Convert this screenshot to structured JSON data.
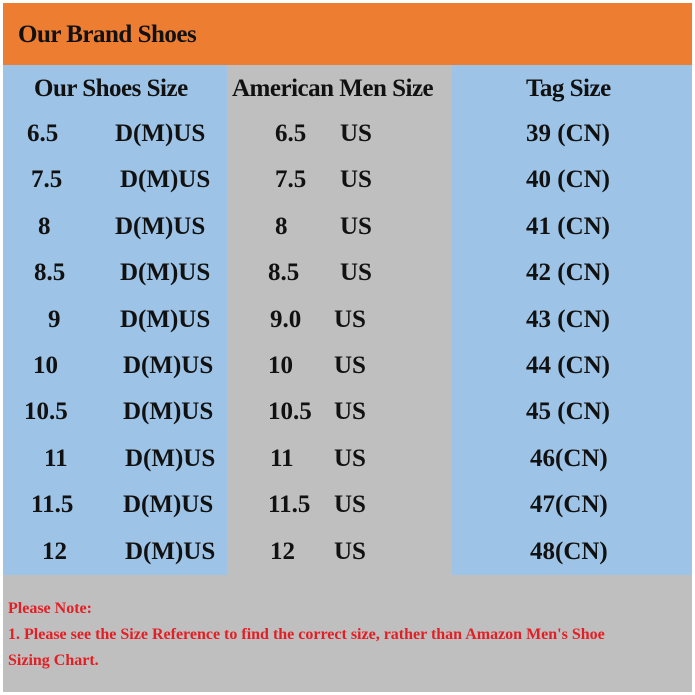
{
  "title": "Our Brand Shoes",
  "headers": [
    "Our Shoes Size",
    "American Men Size",
    "Tag Size"
  ],
  "rows": [
    {
      "our": "6.5",
      "our_unit": "D(M)US",
      "us": "6.5",
      "us_unit": "US",
      "tag": "39 (CN)"
    },
    {
      "our": "7.5",
      "our_unit": "D(M)US",
      "us": "7.5",
      "us_unit": "US",
      "tag": "40 (CN)"
    },
    {
      "our": "8",
      "our_unit": "D(M)US",
      "us": "8",
      "us_unit": "US",
      "tag": "41 (CN)"
    },
    {
      "our": "8.5",
      "our_unit": "D(M)US",
      "us": "8.5",
      "us_unit": "US",
      "tag": "42 (CN)"
    },
    {
      "our": "9",
      "our_unit": "D(M)US",
      "us": "9.0",
      "us_unit": "US",
      "tag": "43 (CN)"
    },
    {
      "our": "10",
      "our_unit": "D(M)US",
      "us": "10",
      "us_unit": "US",
      "tag": "44 (CN)"
    },
    {
      "our": "10.5",
      "our_unit": "D(M)US",
      "us": "10.5",
      "us_unit": "US",
      "tag": "45 (CN)"
    },
    {
      "our": "11",
      "our_unit": "D(M)US",
      "us": "11",
      "us_unit": "US",
      "tag": "46(CN)"
    },
    {
      "our": "11.5",
      "our_unit": "D(M)US",
      "us": "11.5",
      "us_unit": "US",
      "tag": "47(CN)"
    },
    {
      "our": "12",
      "our_unit": "D(M)US",
      "us": "12",
      "us_unit": "US",
      "tag": "48(CN)"
    }
  ],
  "note": {
    "heading": "Please Note:",
    "line1": "1. Please see the Size Reference to find the correct size, rather than Amazon Men's Shoe",
    "line2": "Sizing Chart."
  },
  "colors": {
    "title_bg": "#ed7d31",
    "blue_col": "#9dc3e6",
    "gray_col": "#bfbfbf",
    "note_text": "#e31e24"
  }
}
